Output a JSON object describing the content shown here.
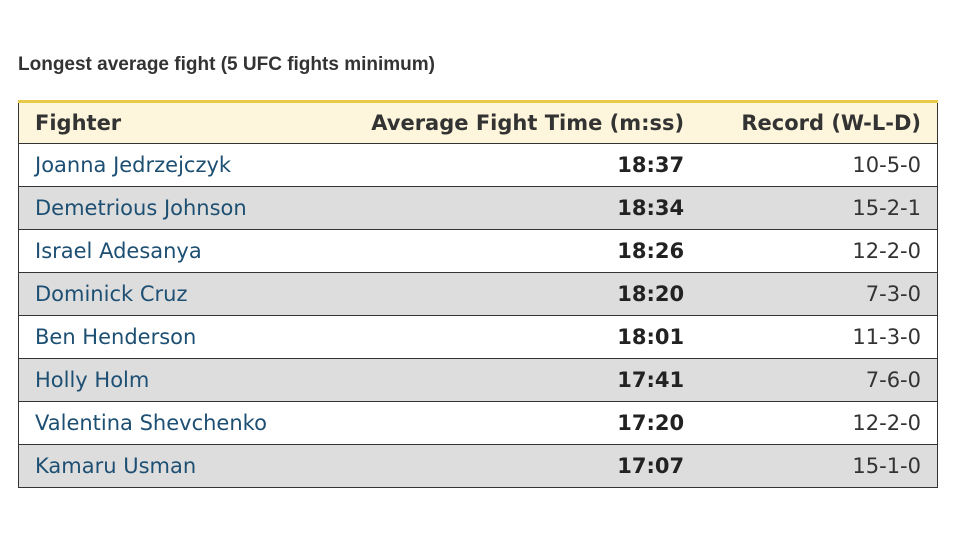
{
  "title": "Longest average fight (5 UFC fights minimum)",
  "table": {
    "headers": {
      "fighter": "Fighter",
      "time": "Average Fight Time (m:ss)",
      "record": "Record (W-L-D)"
    },
    "rows": [
      {
        "fighter": "Joanna Jedrzejczyk",
        "time": "18:37",
        "record": "10-5-0"
      },
      {
        "fighter": "Demetrious Johnson",
        "time": "18:34",
        "record": "15-2-1"
      },
      {
        "fighter": "Israel Adesanya",
        "time": "18:26",
        "record": "12-2-0"
      },
      {
        "fighter": "Dominick Cruz",
        "time": "18:20",
        "record": "7-3-0"
      },
      {
        "fighter": "Ben Henderson",
        "time": "18:01",
        "record": "11-3-0"
      },
      {
        "fighter": "Holly Holm",
        "time": "17:41",
        "record": "7-6-0"
      },
      {
        "fighter": "Valentina Shevchenko",
        "time": "17:20",
        "record": "12-2-0"
      },
      {
        "fighter": "Kamaru Usman",
        "time": "17:07",
        "record": "15-1-0"
      }
    ]
  },
  "colors": {
    "header_background": "#fdf6dc",
    "header_accent": "#e8c94a",
    "row_alternate": "#dddddd",
    "fighter_name": "#1d4f73"
  }
}
